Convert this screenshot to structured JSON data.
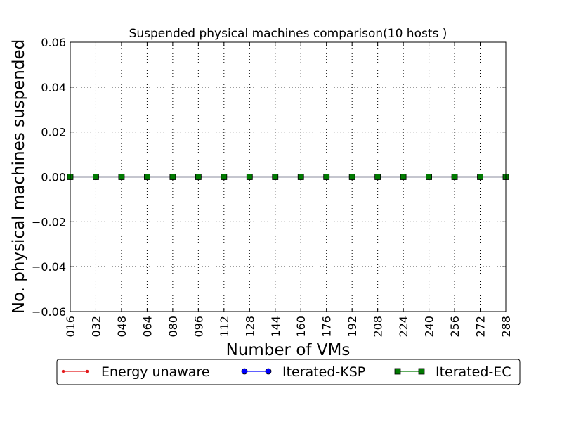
{
  "chart_data": {
    "type": "line",
    "title": "Suspended physical machines comparison(10 hosts )",
    "xlabel": "Number of VMs",
    "ylabel": "No. physical machines suspended",
    "categories": [
      "016",
      "032",
      "048",
      "064",
      "080",
      "096",
      "112",
      "128",
      "144",
      "160",
      "176",
      "192",
      "208",
      "224",
      "240",
      "256",
      "272",
      "288"
    ],
    "ylim": [
      -0.06,
      0.06
    ],
    "yticks": [
      -0.06,
      -0.04,
      -0.02,
      0.0,
      0.02,
      0.04,
      0.06
    ],
    "ytick_labels": [
      "−0.06",
      "−0.04",
      "−0.02",
      "0.00",
      "0.02",
      "0.04",
      "0.06"
    ],
    "grid": true,
    "legend_position": "bottom",
    "series": [
      {
        "name": "Energy unaware",
        "color": "#e31a1c",
        "marker": "dot",
        "values": [
          0,
          0,
          0,
          0,
          0,
          0,
          0,
          0,
          0,
          0,
          0,
          0,
          0,
          0,
          0,
          0,
          0,
          0
        ]
      },
      {
        "name": "Iterated-KSP",
        "color": "#0000ff",
        "marker": "circle",
        "values": [
          0,
          0,
          0,
          0,
          0,
          0,
          0,
          0,
          0,
          0,
          0,
          0,
          0,
          0,
          0,
          0,
          0,
          0
        ]
      },
      {
        "name": "Iterated-EC",
        "color": "#007a00",
        "marker": "square",
        "values": [
          0,
          0,
          0,
          0,
          0,
          0,
          0,
          0,
          0,
          0,
          0,
          0,
          0,
          0,
          0,
          0,
          0,
          0
        ]
      }
    ]
  }
}
